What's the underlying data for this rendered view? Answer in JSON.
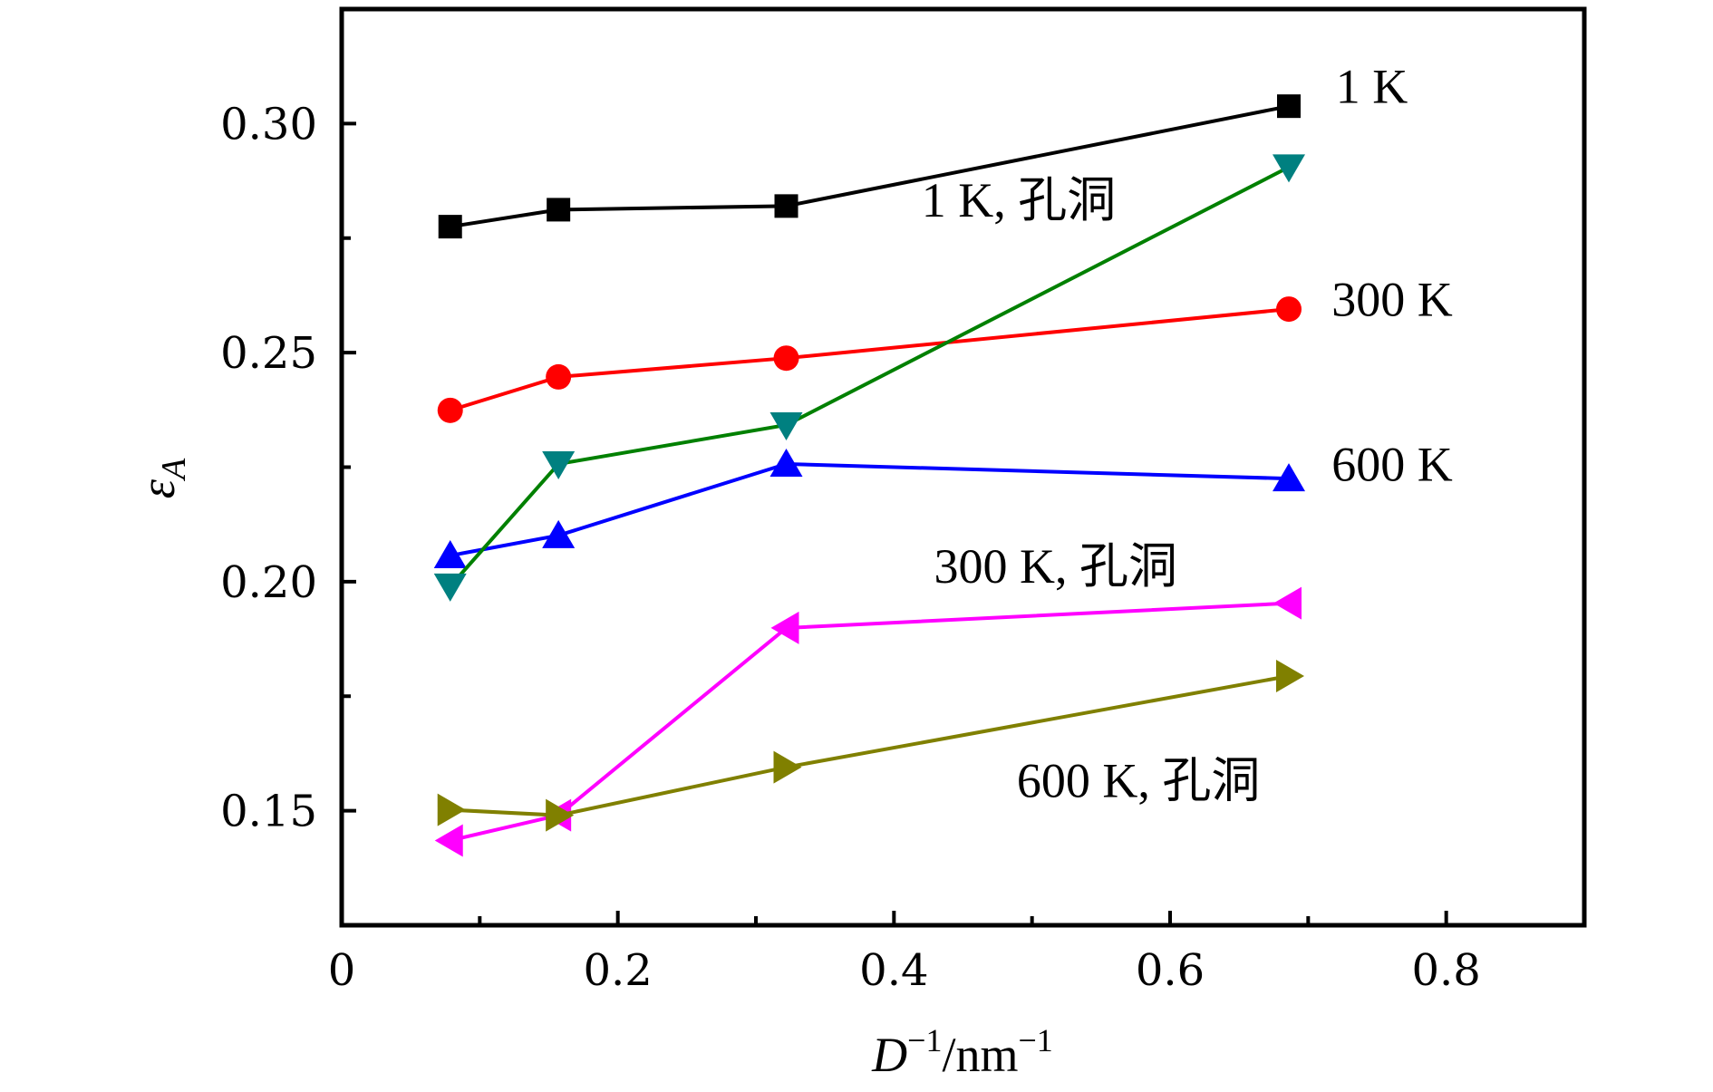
{
  "chart_data": {
    "type": "line",
    "title": "",
    "xlabel": "D^-1/nm^-1",
    "xlabel_parts": {
      "var": "D",
      "sup1": "−1",
      "slash_unit": "/nm",
      "sup2": "−1"
    },
    "ylabel": "εA",
    "ylabel_parts": {
      "var": "ε",
      "sub": "A"
    },
    "xlim": [
      0,
      0.9
    ],
    "ylim": [
      0.125,
      0.325
    ],
    "x_ticks": [
      0,
      0.2,
      0.4,
      0.6,
      0.8
    ],
    "x_tick_labels": [
      "0",
      "0.2",
      "0.4",
      "0.6",
      "0.8"
    ],
    "x_minor_ticks": [
      0.1,
      0.3,
      0.5,
      0.7
    ],
    "y_ticks": [
      0.15,
      0.2,
      0.25,
      0.3
    ],
    "y_tick_labels": [
      "0.15",
      "0.20",
      "0.25",
      "0.30"
    ],
    "y_minor_ticks": [
      0.175,
      0.225,
      0.275
    ],
    "grid": false,
    "legend": "none (inline annotations)",
    "x": [
      0.0786,
      0.157,
      0.322,
      0.686
    ],
    "series": [
      {
        "name": "1 K",
        "marker": "square",
        "color": "#000000",
        "line_color": "#000000",
        "values": [
          0.2775,
          0.2812,
          0.282,
          0.3038
        ]
      },
      {
        "name": "300 K",
        "marker": "circle",
        "color": "#ff0000",
        "line_color": "#ff0000",
        "values": [
          0.2374,
          0.2447,
          0.2488,
          0.2595
        ]
      },
      {
        "name": "600 K",
        "marker": "triangle-up",
        "color": "#0000ff",
        "line_color": "#0000ff",
        "values": [
          0.2057,
          0.2101,
          0.2257,
          0.2225
        ]
      },
      {
        "name": "1 K, 孔洞",
        "marker": "triangle-down",
        "color": "#008080",
        "line_color": "#008000",
        "values": [
          0.199,
          0.2257,
          0.2342,
          0.2905
        ]
      },
      {
        "name": "300 K, 孔洞",
        "marker": "triangle-left",
        "color": "#ff00ff",
        "line_color": "#ff00ff",
        "values": [
          0.1435,
          0.149,
          0.1899,
          0.1953
        ]
      },
      {
        "name": "600 K, 孔洞",
        "marker": "triangle-right",
        "color": "#808000",
        "line_color": "#808000",
        "values": [
          0.1502,
          0.149,
          0.1595,
          0.1794
        ]
      }
    ],
    "annotations": [
      {
        "text": "1 K",
        "x": 0.72,
        "y": 0.3045
      },
      {
        "text": "300 K",
        "x": 0.717,
        "y": 0.258
      },
      {
        "text": "600 K",
        "x": 0.717,
        "y": 0.222
      },
      {
        "text": "1 K, 孔洞",
        "x": 0.42,
        "y": 0.2797
      },
      {
        "text": "300 K, 孔洞",
        "x": 0.429,
        "y": 0.1998
      },
      {
        "text": "600 K, 孔洞",
        "x": 0.489,
        "y": 0.153
      }
    ]
  }
}
